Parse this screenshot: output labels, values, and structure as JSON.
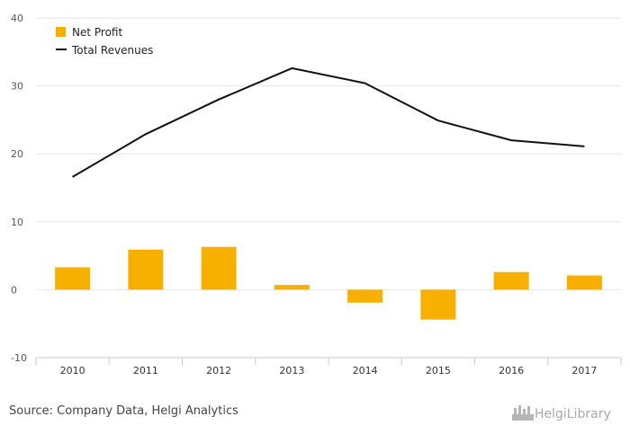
{
  "chart_data": {
    "type": "bar",
    "categories": [
      "2010",
      "2011",
      "2012",
      "2013",
      "2014",
      "2015",
      "2016",
      "2017"
    ],
    "series": [
      {
        "name": "Net Profit",
        "type": "bar",
        "color": "#f7b000",
        "values": [
          3.3,
          5.9,
          6.3,
          0.7,
          -1.9,
          -4.4,
          2.6,
          2.1
        ]
      },
      {
        "name": "Total Revenues",
        "type": "line",
        "color": "#111111",
        "values": [
          16.6,
          22.9,
          28.0,
          32.6,
          30.4,
          24.9,
          22.0,
          21.1
        ]
      }
    ],
    "ylim": [
      -10,
      40
    ],
    "yticks": [
      -10,
      0,
      10,
      20,
      30,
      40
    ],
    "grid": true,
    "legend_position": "top-left"
  },
  "footer": {
    "source": "Source: Company Data, Helgi Analytics",
    "brand": "HelgiLibrary"
  },
  "icons": {
    "brand": "helgi-library-logo-icon"
  }
}
